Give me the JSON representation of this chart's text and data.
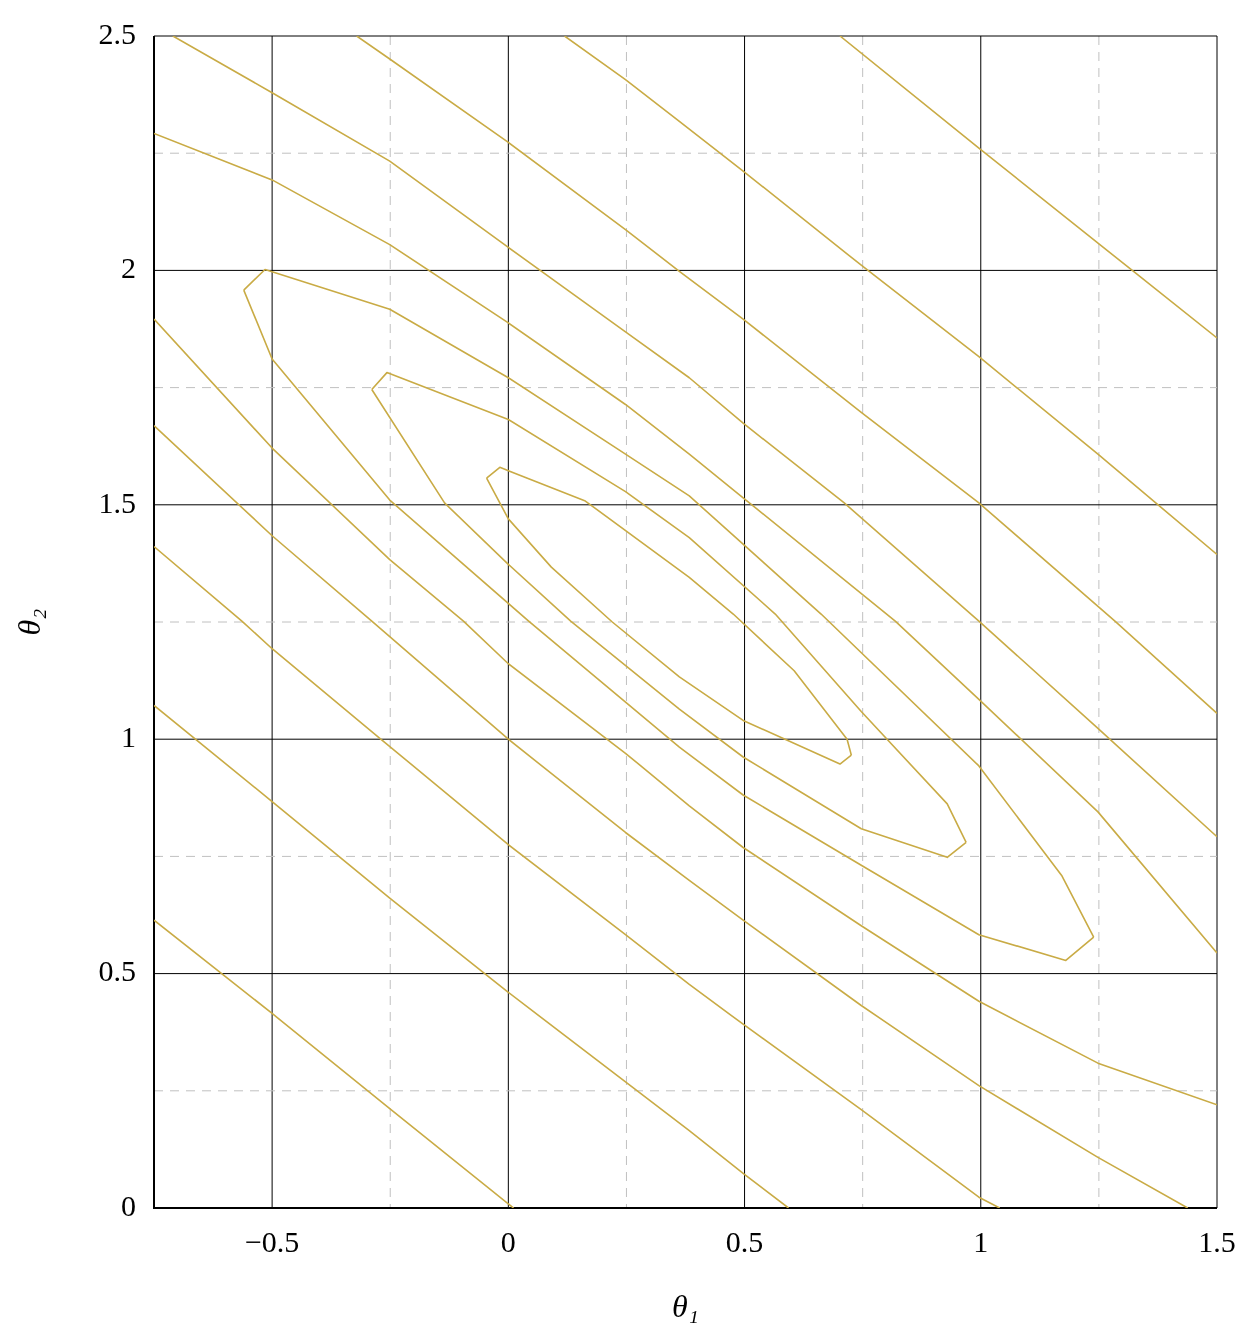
{
  "chart_data": {
    "type": "line",
    "xlabel": "θ₁",
    "ylabel": "θ₂",
    "xlim": [
      -0.75,
      1.5
    ],
    "ylim": [
      0,
      2.5
    ],
    "xticks": [
      {
        "value": -0.5,
        "label": "−0.5"
      },
      {
        "value": -0.25,
        "label": null
      },
      0,
      {
        "value": 0.25,
        "label": null
      },
      0.5,
      {
        "value": 0.75,
        "label": null
      },
      1,
      {
        "value": 1.25,
        "label": null
      },
      1.5
    ],
    "yticks": [
      0,
      {
        "value": 0.25,
        "label": null
      },
      0.5,
      {
        "value": 0.75,
        "label": null
      },
      1,
      {
        "value": 1.25,
        "label": null
      },
      1.5,
      {
        "value": 1.75,
        "label": null
      },
      2,
      {
        "value": 2.25,
        "label": null
      },
      2.5
    ],
    "grid": true,
    "legend": false,
    "marker": "none",
    "line_style": "solid",
    "series": [
      {
        "color": "#c9ab45",
        "x": [
          0.702,
          0.996,
          1.318,
          1.5
        ],
        "values": [
          2.5,
          2.261,
          2.002,
          1.856
        ]
      },
      {
        "color": "#c9ab45",
        "x": [
          0.119,
          0.248,
          0.362,
          0.497,
          0.747,
          0.996,
          1.248,
          1.5
        ],
        "values": [
          2.5,
          2.407,
          2.318,
          2.212,
          2.011,
          1.816,
          1.608,
          1.394
        ]
      },
      {
        "color": "#c9ab45",
        "x": [
          -0.321,
          -0.251,
          0,
          0.248,
          0.362,
          0.497,
          0.747,
          0.996,
          1.284,
          1.5
        ],
        "values": [
          2.5,
          2.451,
          2.273,
          2.087,
          1.998,
          1.896,
          1.697,
          1.504,
          1.252,
          1.055
        ]
      },
      {
        "color": "#c9ab45",
        "x": [
          -0.71,
          -0.5,
          -0.251,
          0,
          0.248,
          0.383,
          0.497,
          0.711,
          0.996,
          1.248,
          1.5
        ],
        "values": [
          2.5,
          2.379,
          2.233,
          2.049,
          1.869,
          1.771,
          1.674,
          1.504,
          1.252,
          1.023,
          0.792
        ]
      },
      {
        "color": "#c9ab45",
        "x": [
          -0.75,
          -0.5,
          -0.251,
          0,
          0.248,
          0.383,
          0.497,
          0.819,
          0.996,
          1.248,
          1.5
        ],
        "values": [
          2.292,
          2.193,
          2.055,
          1.888,
          1.714,
          1.608,
          1.515,
          1.252,
          1.085,
          0.845,
          0.544
        ]
      },
      {
        "color": "#c9ab45",
        "x": [
          -0.56,
          -0.515,
          -0.251,
          0,
          0.248,
          0.383,
          0.662,
          0.996,
          1.172,
          1.239
        ],
        "values": [
          1.958,
          2.002,
          1.917,
          1.771,
          1.608,
          1.519,
          1.267,
          0.943,
          0.708,
          0.578
        ]
      },
      {
        "color": "#c9ab45",
        "x": [
          -0.289,
          -0.257,
          0,
          0.248,
          0.383,
          0.565,
          0.747,
          0.929,
          0.969
        ],
        "values": [
          1.746,
          1.782,
          1.682,
          1.528,
          1.43,
          1.267,
          1.059,
          0.862,
          0.78
        ]
      },
      {
        "color": "#c9ab45",
        "x": [
          -0.046,
          -0.018,
          0.163,
          0.383,
          0.476,
          0.605,
          0.717,
          0.726
        ],
        "values": [
          1.557,
          1.58,
          1.508,
          1.345,
          1.267,
          1.146,
          1.0,
          0.966
        ]
      },
      {
        "color": "#c9ab45",
        "x": [
          -0.046,
          0,
          0.091,
          0.22,
          0.362,
          0.497,
          0.702,
          0.726
        ],
        "values": [
          1.557,
          1.47,
          1.367,
          1.25,
          1.133,
          1.04,
          0.947,
          0.966
        ]
      },
      {
        "color": "#c9ab45",
        "x": [
          -0.289,
          -0.135,
          0,
          0.132,
          0.362,
          0.497,
          0.747,
          0.929,
          0.969
        ],
        "values": [
          1.746,
          1.504,
          1.373,
          1.252,
          1.064,
          0.962,
          0.809,
          0.748,
          0.78
        ]
      },
      {
        "color": "#c9ab45",
        "x": [
          -0.56,
          -0.5,
          -0.251,
          0.043,
          0.362,
          0.497,
          0.747,
          0.996,
          1.18,
          1.239
        ],
        "values": [
          1.958,
          1.811,
          1.51,
          1.252,
          0.983,
          0.881,
          0.731,
          0.583,
          0.528,
          0.578
        ]
      },
      {
        "color": "#c9ab45",
        "x": [
          -0.75,
          -0.5,
          -0.251,
          -0.095,
          0,
          0.248,
          0.383,
          0.497,
          0.747,
          0.996,
          1.248,
          1.5
        ],
        "values": [
          1.896,
          1.621,
          1.383,
          1.252,
          1.161,
          0.97,
          0.858,
          0.769,
          0.602,
          0.441,
          0.309,
          0.22
        ]
      },
      {
        "color": "#c9ab45",
        "x": [
          -0.75,
          -0.5,
          -0.289,
          0,
          0.248,
          0.383,
          0.497,
          0.747,
          0.996,
          1.248,
          1.438
        ],
        "values": [
          1.669,
          1.434,
          1.252,
          1.0,
          0.801,
          0.699,
          0.614,
          0.432,
          0.261,
          0.108,
          0
        ]
      },
      {
        "color": "#c9ab45",
        "x": [
          -0.75,
          -0.564,
          -0.5,
          -0.272,
          0,
          0.248,
          0.383,
          0.497,
          0.747,
          0.996,
          1.04
        ],
        "values": [
          1.411,
          1.252,
          1.193,
          1.002,
          0.775,
          0.583,
          0.477,
          0.392,
          0.21,
          0.023,
          0
        ]
      },
      {
        "color": "#c9ab45",
        "x": [
          -0.75,
          -0.5,
          -0.251,
          0,
          0.248,
          0.383,
          0.497,
          0.593
        ],
        "values": [
          1.072,
          0.867,
          0.661,
          0.46,
          0.269,
          0.165,
          0.074,
          0
        ]
      },
      {
        "color": "#c9ab45",
        "x": [
          -0.75,
          -0.5,
          -0.251,
          0.011
        ],
        "values": [
          0.614,
          0.415,
          0.212,
          0
        ]
      }
    ]
  }
}
